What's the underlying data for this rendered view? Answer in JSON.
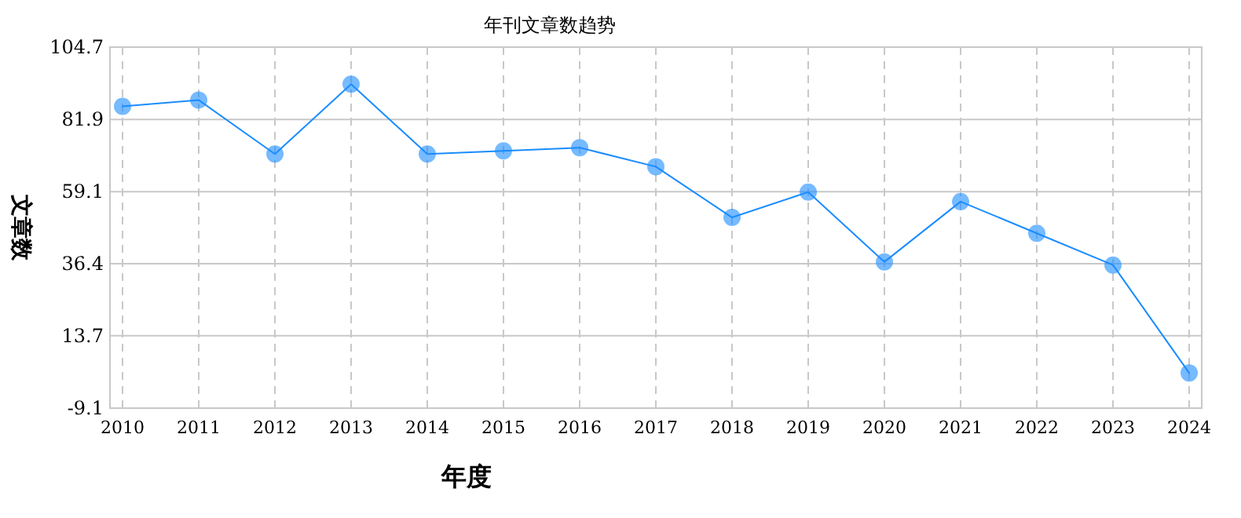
{
  "chart_data": {
    "type": "line",
    "title": "年刊文章数趋势",
    "xlabel": "年度",
    "ylabel": "文章数",
    "categories": [
      "2010",
      "2011",
      "2012",
      "2013",
      "2014",
      "2015",
      "2016",
      "2017",
      "2018",
      "2019",
      "2020",
      "2021",
      "2022",
      "2023",
      "2024"
    ],
    "series": [
      {
        "color": "#1a8cff",
        "values": [
          86,
          88,
          71,
          93,
          71,
          72,
          73,
          67,
          51,
          59,
          37,
          56,
          46,
          36,
          2
        ]
      }
    ],
    "ylim": [
      -9.1,
      104.7
    ],
    "yticks": [
      -9.1,
      13.7,
      36.4,
      59.1,
      81.9,
      104.7
    ],
    "grid": true,
    "marker": "circle",
    "line_style": "solid"
  }
}
